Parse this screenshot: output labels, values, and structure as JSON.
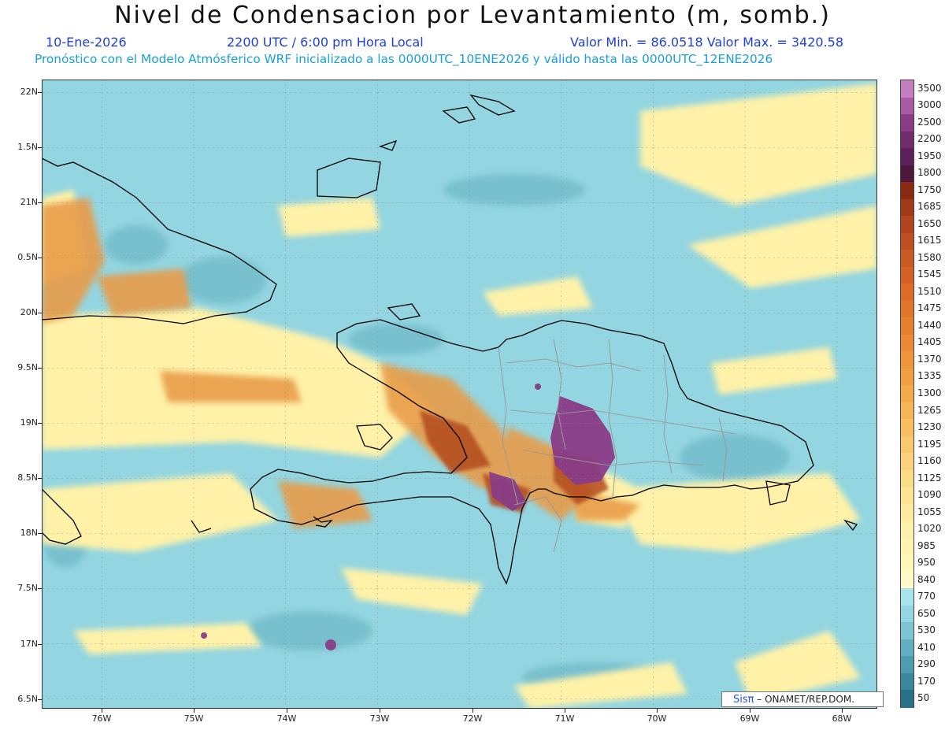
{
  "title": "Nivel de Condensacion por Levantamiento (m, somb.)",
  "header": {
    "date": "10-Ene-2026",
    "time": "2200 UTC / 6:00 pm Hora Local",
    "min_max": "Valor Min. = 86.0518  Valor Max. = 3420.58",
    "model_line": "Pronóstico con el Modelo Atmósferico WRF inicializado a las 0000UTC_10ENE2026 y válido hasta las  0000UTC_12ENE2026"
  },
  "axes": {
    "lat_labels": [
      "22N",
      "1.5N",
      "21N",
      "0.5N",
      "20N",
      "9.5N",
      "19N",
      "8.5N",
      "18N",
      "7.5N",
      "17N",
      "6.5N"
    ],
    "lon_labels": [
      "76W",
      "75W",
      "74W",
      "73W",
      "72W",
      "71W",
      "70W",
      "69W",
      "68W"
    ]
  },
  "colorbar": {
    "labels": [
      "3500",
      "3000",
      "2500",
      "2200",
      "1950",
      "1800",
      "1750",
      "1685",
      "1650",
      "1615",
      "1580",
      "1545",
      "1510",
      "1475",
      "1440",
      "1405",
      "1370",
      "1335",
      "1300",
      "1265",
      "1230",
      "1195",
      "1160",
      "1125",
      "1090",
      "1055",
      "1020",
      "985",
      "950",
      "840",
      "770",
      "650",
      "530",
      "410",
      "290",
      "170",
      "50"
    ],
    "colors": [
      "#c47fc0",
      "#a85aa6",
      "#8a3c86",
      "#702c6c",
      "#5c2258",
      "#4a1a3a",
      "#8a2a14",
      "#a0381a",
      "#b24420",
      "#c04f22",
      "#c95a24",
      "#d26226",
      "#da6c28",
      "#e0762c",
      "#e68030",
      "#ea8a36",
      "#ee963e",
      "#f0a044",
      "#f3aa4c",
      "#f5b456",
      "#f7be62",
      "#f9c86e",
      "#fad27c",
      "#fbdc88",
      "#fce494",
      "#fdeaa0",
      "#fdf0aa",
      "#fef4b2",
      "#fff8bb",
      "#fffac8",
      "#a8e4ec",
      "#93d5e0",
      "#7cc4d2",
      "#64b0c0",
      "#4e9caf",
      "#3a879c",
      "#2a7188"
    ]
  },
  "map": {
    "ocean_color": "#93d5e0",
    "low_color": "#fff0a8",
    "mid_color": "#e8943a",
    "high_color": "#7a2e74",
    "coast_color": "#000000",
    "border_color": "#999999"
  },
  "credit": {
    "logo": "Sisπ",
    "text": "– ONAMET/REP.DOM."
  }
}
